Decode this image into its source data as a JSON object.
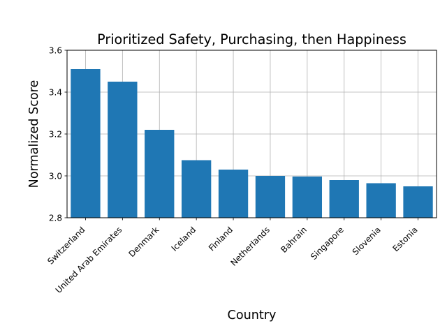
{
  "chart_data": {
    "type": "bar",
    "title": "Prioritized Safety, Purchasing, then Happiness",
    "xlabel": "Country",
    "ylabel": "Normalized Score",
    "categories": [
      "Switzerland",
      "United Arab Emirates",
      "Denmark",
      "Iceland",
      "Finland",
      "Netherlands",
      "Bahrain",
      "Singapore",
      "Slovenia",
      "Estonia"
    ],
    "values": [
      3.51,
      3.45,
      3.22,
      3.075,
      3.03,
      3.0,
      2.997,
      2.98,
      2.965,
      2.95
    ],
    "ylim": [
      2.8,
      3.6
    ],
    "yticks": [
      "2.8",
      "3.0",
      "3.2",
      "3.4",
      "3.6"
    ],
    "grid": true,
    "bar_color": "#1f77b4"
  }
}
